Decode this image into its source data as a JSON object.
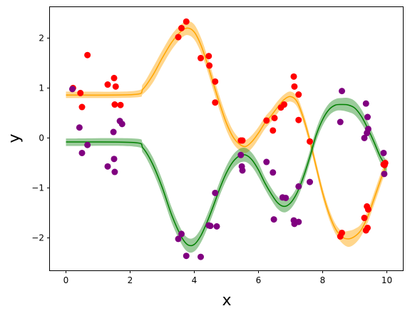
{
  "chart_data": {
    "type": "scatter",
    "title": "",
    "xlabel": "x",
    "ylabel": "y",
    "xlim": [
      -0.5,
      10.5
    ],
    "ylim": [
      -2.65,
      2.62
    ],
    "xticks": [
      0,
      2,
      4,
      6,
      8,
      10
    ],
    "yticks": [
      -2,
      -1,
      0,
      1,
      2
    ],
    "xtick_labels": [
      "0",
      "2",
      "4",
      "6",
      "8",
      "10"
    ],
    "ytick_labels": [
      "−2",
      "−1",
      "0",
      "1",
      "2"
    ],
    "grid": false,
    "legend": "none",
    "series": [
      {
        "kind": "scatter",
        "color": "#ff0000",
        "points": [
          [
            0.22,
            1.0
          ],
          [
            0.45,
            0.9
          ],
          [
            0.5,
            0.62
          ],
          [
            0.67,
            1.66
          ],
          [
            1.3,
            1.07
          ],
          [
            1.5,
            1.2
          ],
          [
            1.52,
            0.67
          ],
          [
            1.55,
            1.03
          ],
          [
            1.7,
            0.66
          ],
          [
            3.5,
            2.02
          ],
          [
            3.6,
            2.2
          ],
          [
            3.75,
            2.33
          ],
          [
            4.2,
            1.6
          ],
          [
            4.45,
            1.64
          ],
          [
            4.47,
            1.45
          ],
          [
            4.65,
            1.13
          ],
          [
            4.65,
            0.71
          ],
          [
            5.45,
            -0.05
          ],
          [
            5.5,
            -0.05
          ],
          [
            6.25,
            0.35
          ],
          [
            6.45,
            0.15
          ],
          [
            6.5,
            0.4
          ],
          [
            6.7,
            0.61
          ],
          [
            6.8,
            0.67
          ],
          [
            7.1,
            1.23
          ],
          [
            7.12,
            1.03
          ],
          [
            7.25,
            0.87
          ],
          [
            7.25,
            0.36
          ],
          [
            7.6,
            -0.07
          ],
          [
            8.55,
            -1.97
          ],
          [
            8.6,
            -1.9
          ],
          [
            9.3,
            -1.6
          ],
          [
            9.35,
            -1.85
          ],
          [
            9.38,
            -1.37
          ],
          [
            9.4,
            -1.8
          ],
          [
            9.42,
            -1.43
          ],
          [
            9.9,
            -0.53
          ],
          [
            9.93,
            -0.54
          ],
          [
            9.95,
            -0.5
          ]
        ]
      },
      {
        "kind": "scatter",
        "color": "#800080",
        "points": [
          [
            0.2,
            0.98
          ],
          [
            0.42,
            0.21
          ],
          [
            0.5,
            -0.3
          ],
          [
            0.67,
            -0.14
          ],
          [
            1.3,
            -0.57
          ],
          [
            1.48,
            0.12
          ],
          [
            1.5,
            -0.42
          ],
          [
            1.52,
            -0.68
          ],
          [
            1.68,
            0.34
          ],
          [
            1.75,
            0.28
          ],
          [
            3.5,
            -2.02
          ],
          [
            3.6,
            -1.92
          ],
          [
            3.75,
            -2.36
          ],
          [
            4.2,
            -2.38
          ],
          [
            4.45,
            -1.75
          ],
          [
            4.5,
            -1.76
          ],
          [
            4.65,
            -1.1
          ],
          [
            4.7,
            -1.77
          ],
          [
            5.45,
            -0.34
          ],
          [
            5.48,
            -0.57
          ],
          [
            5.5,
            -0.65
          ],
          [
            6.25,
            -0.48
          ],
          [
            6.45,
            -0.69
          ],
          [
            6.48,
            -1.63
          ],
          [
            6.75,
            -1.19
          ],
          [
            6.85,
            -1.2
          ],
          [
            7.1,
            -1.65
          ],
          [
            7.12,
            -1.72
          ],
          [
            7.25,
            -1.68
          ],
          [
            7.25,
            -0.97
          ],
          [
            7.6,
            -0.88
          ],
          [
            8.55,
            0.32
          ],
          [
            8.6,
            0.94
          ],
          [
            9.3,
            0.0
          ],
          [
            9.35,
            0.69
          ],
          [
            9.38,
            0.1
          ],
          [
            9.4,
            0.42
          ],
          [
            9.42,
            0.18
          ],
          [
            9.9,
            -0.3
          ],
          [
            9.92,
            -0.72
          ]
        ]
      },
      {
        "kind": "line-band",
        "line_color": "#ffa500",
        "band_color": "#ffa500",
        "band_opacity": 0.45,
        "x": [
          0,
          2.1,
          2.4,
          2.7,
          3.0,
          3.3,
          3.6,
          3.8,
          4.0,
          4.2,
          4.4,
          4.6,
          4.8,
          5.0,
          5.2,
          5.4,
          5.6,
          5.8,
          6.0,
          6.2,
          6.4,
          6.6,
          6.8,
          7.0,
          7.2,
          7.4,
          7.6,
          7.8,
          8.0,
          8.2,
          8.4,
          8.6,
          8.8,
          9.0,
          9.2,
          9.4,
          9.6,
          9.8,
          10.0
        ],
        "y": [
          0.86,
          0.87,
          0.98,
          1.25,
          1.6,
          1.92,
          2.14,
          2.2,
          2.12,
          1.87,
          1.5,
          1.08,
          0.67,
          0.3,
          0.03,
          -0.12,
          -0.17,
          -0.07,
          0.1,
          0.3,
          0.45,
          0.62,
          0.77,
          0.83,
          0.73,
          0.4,
          -0.05,
          -0.58,
          -1.1,
          -1.52,
          -1.82,
          -1.98,
          -2.02,
          -1.97,
          -1.84,
          -1.58,
          -1.22,
          -0.85,
          -0.5
        ],
        "lower": [
          0.8,
          0.81,
          0.88,
          1.1,
          1.45,
          1.77,
          2.0,
          2.06,
          1.97,
          1.72,
          1.36,
          0.94,
          0.53,
          0.16,
          -0.1,
          -0.24,
          -0.3,
          -0.2,
          -0.02,
          0.18,
          0.33,
          0.5,
          0.67,
          0.73,
          0.63,
          0.3,
          -0.15,
          -0.68,
          -1.2,
          -1.62,
          -1.92,
          -2.1,
          -2.18,
          -2.12,
          -1.96,
          -1.7,
          -1.34,
          -0.97,
          -0.6
        ],
        "upper": [
          0.93,
          0.94,
          1.08,
          1.4,
          1.75,
          2.07,
          2.28,
          2.34,
          2.27,
          2.02,
          1.65,
          1.22,
          0.81,
          0.44,
          0.16,
          0.0,
          -0.04,
          0.06,
          0.22,
          0.42,
          0.57,
          0.74,
          0.87,
          0.93,
          0.83,
          0.5,
          0.05,
          -0.48,
          -1.0,
          -1.42,
          -1.72,
          -1.86,
          -1.86,
          -1.82,
          -1.72,
          -1.46,
          -1.1,
          -0.73,
          -0.4
        ]
      },
      {
        "kind": "line-band",
        "line_color": "#008000",
        "band_color": "#228b22",
        "band_opacity": 0.45,
        "x": [
          0,
          2.1,
          2.4,
          2.7,
          3.0,
          3.3,
          3.6,
          3.8,
          4.0,
          4.2,
          4.4,
          4.6,
          4.8,
          5.0,
          5.2,
          5.4,
          5.6,
          5.8,
          6.0,
          6.2,
          6.4,
          6.6,
          6.8,
          7.0,
          7.2,
          7.4,
          7.6,
          7.8,
          8.0,
          8.2,
          8.4,
          8.6,
          8.8,
          9.0,
          9.2,
          9.4,
          9.6,
          9.8,
          10.0
        ],
        "y": [
          -0.08,
          -0.09,
          -0.2,
          -0.52,
          -0.99,
          -1.55,
          -1.98,
          -2.14,
          -2.13,
          -1.96,
          -1.68,
          -1.35,
          -1.0,
          -0.7,
          -0.48,
          -0.36,
          -0.34,
          -0.44,
          -0.64,
          -0.9,
          -1.12,
          -1.3,
          -1.37,
          -1.3,
          -1.1,
          -0.78,
          -0.38,
          0.06,
          0.37,
          0.57,
          0.66,
          0.67,
          0.66,
          0.6,
          0.44,
          0.2,
          -0.08,
          -0.38,
          -0.58
        ],
        "lower": [
          -0.16,
          -0.17,
          -0.3,
          -0.66,
          -1.14,
          -1.7,
          -2.12,
          -2.28,
          -2.27,
          -2.1,
          -1.82,
          -1.49,
          -1.14,
          -0.84,
          -0.62,
          -0.5,
          -0.48,
          -0.58,
          -0.78,
          -1.02,
          -1.24,
          -1.42,
          -1.49,
          -1.42,
          -1.22,
          -0.9,
          -0.5,
          -0.06,
          0.25,
          0.45,
          0.54,
          0.55,
          0.52,
          0.46,
          0.3,
          0.07,
          -0.2,
          -0.5,
          -0.7
        ],
        "upper": [
          -0.01,
          -0.01,
          -0.1,
          -0.38,
          -0.84,
          -1.4,
          -1.84,
          -2.0,
          -1.99,
          -1.82,
          -1.54,
          -1.21,
          -0.86,
          -0.56,
          -0.34,
          -0.22,
          -0.2,
          -0.3,
          -0.5,
          -0.78,
          -1.0,
          -1.18,
          -1.25,
          -1.18,
          -0.98,
          -0.66,
          -0.26,
          0.18,
          0.49,
          0.69,
          0.78,
          0.8,
          0.8,
          0.74,
          0.58,
          0.33,
          0.04,
          -0.26,
          -0.46
        ]
      }
    ]
  }
}
